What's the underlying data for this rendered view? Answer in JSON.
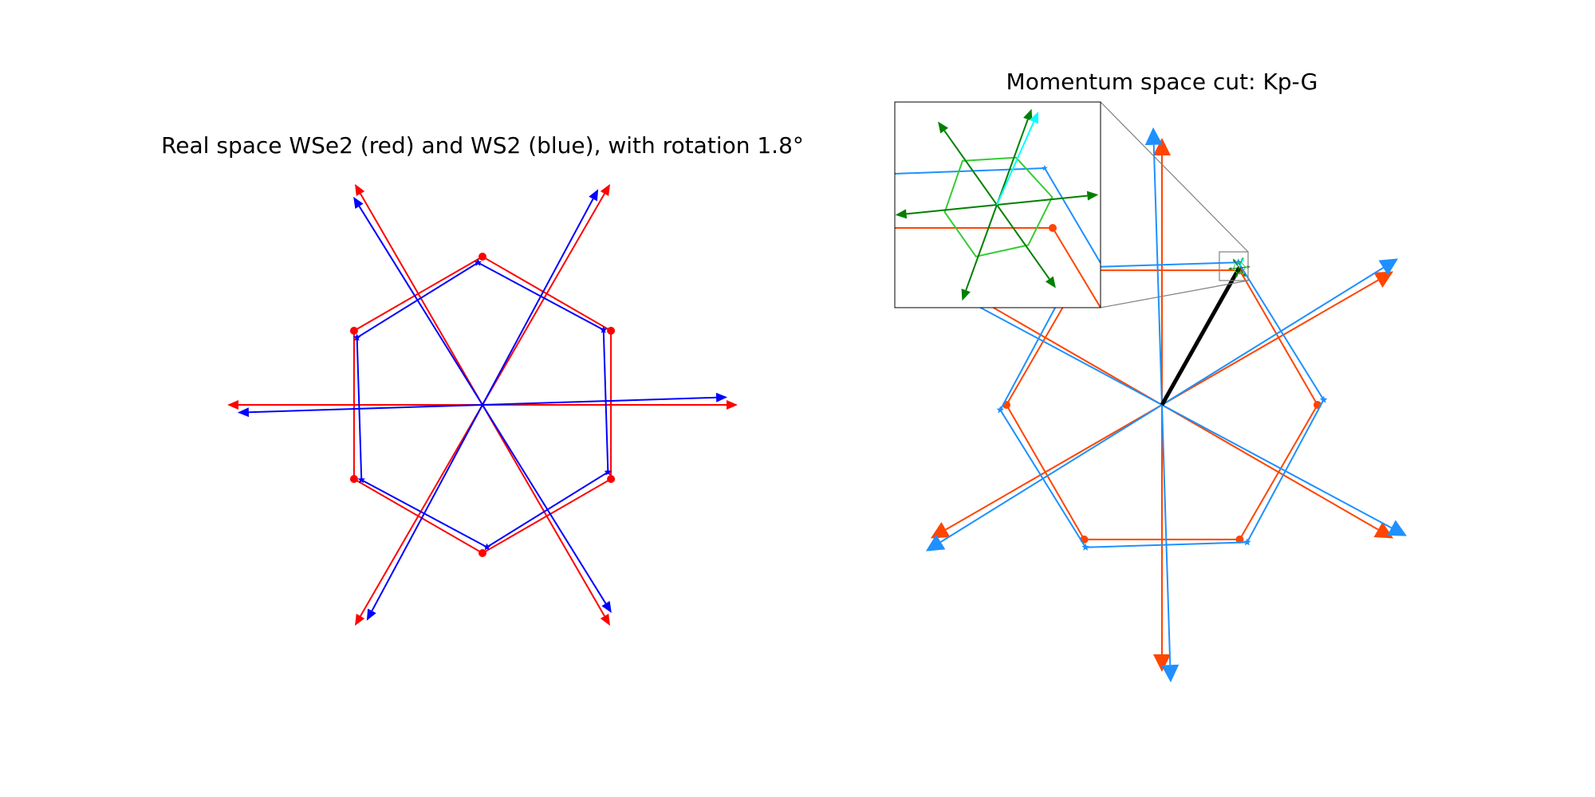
{
  "figure": {
    "left_title": "Real space WSe2 (red) and WS2 (blue), with rotation 1.8°",
    "right_title": "Momentum space cut: Kp-G"
  },
  "colors": {
    "wse2_real": "#ff0000",
    "ws2_real": "#0000ff",
    "wse2_k": "#ff4500",
    "ws2_k": "#1e90ff",
    "moire_bz": "#32cd32",
    "moire_vec": "#008000",
    "kp_vec": "#00ffff",
    "cut": "#000000"
  },
  "chart_data": {
    "type": "diagram",
    "rotation_deg": 1.8,
    "real_space": {
      "layers": [
        {
          "name": "WSe2",
          "color": "red",
          "scale": 1.0,
          "rotation_deg": 0
        },
        {
          "name": "WS2",
          "color": "blue",
          "scale": 0.96,
          "rotation_deg": 1.8
        }
      ]
    },
    "momentum_space": {
      "cut": "Kp-G",
      "layers": [
        {
          "name": "WSe2",
          "color": "orangered",
          "scale": 1.0,
          "rotation_deg": 0
        },
        {
          "name": "WS2",
          "color": "dodgerblue",
          "scale": 1.04,
          "rotation_deg": 1.8
        }
      ],
      "inset": {
        "shows": "moire Brillouin zone near K'"
      }
    }
  }
}
